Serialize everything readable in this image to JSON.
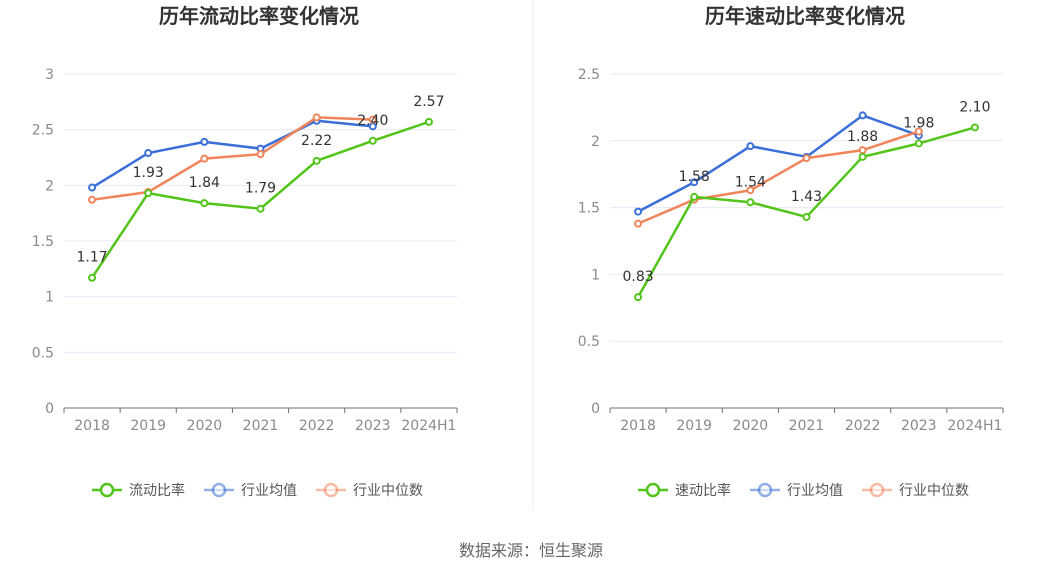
{
  "source": "数据来源：恒生聚源",
  "chart_data": [
    {
      "type": "line",
      "title": "历年流动比率变化情况",
      "categories": [
        "2018",
        "2019",
        "2020",
        "2021",
        "2022",
        "2023",
        "2024H1"
      ],
      "ylim": [
        0,
        3
      ],
      "yticks": [
        "0",
        "0.5",
        "1",
        "1.5",
        "2",
        "2.5",
        "3"
      ],
      "ytick_values": [
        0,
        0.5,
        1,
        1.5,
        2,
        2.5,
        3
      ],
      "grid": true,
      "legend_position": "bottom-center",
      "series": [
        {
          "name": "流动比率",
          "color": "#52c41a",
          "values": [
            1.17,
            1.93,
            1.84,
            1.79,
            2.22,
            2.4,
            2.57
          ],
          "labels": [
            "1.17",
            "1.93",
            "1.84",
            "1.79",
            "2.22",
            "2.40",
            "2.57"
          ]
        },
        {
          "name": "行业均值",
          "color": "#3a6fd8",
          "values": [
            1.98,
            2.29,
            2.39,
            2.33,
            2.58,
            2.53,
            null
          ]
        },
        {
          "name": "行业中位数",
          "color": "#f0845a",
          "values": [
            1.87,
            1.94,
            2.24,
            2.28,
            2.61,
            2.59,
            null
          ]
        }
      ]
    },
    {
      "type": "line",
      "title": "历年速动比率变化情况",
      "categories": [
        "2018",
        "2019",
        "2020",
        "2021",
        "2022",
        "2023",
        "2024H1"
      ],
      "ylim": [
        0,
        2.5
      ],
      "yticks": [
        "0",
        "0.5",
        "1",
        "1.5",
        "2",
        "2.5"
      ],
      "ytick_values": [
        0,
        0.5,
        1,
        1.5,
        2,
        2.5
      ],
      "grid": true,
      "legend_position": "bottom-center",
      "series": [
        {
          "name": "速动比率",
          "color": "#52c41a",
          "values": [
            0.83,
            1.58,
            1.54,
            1.43,
            1.88,
            1.98,
            2.1
          ],
          "labels": [
            "0.83",
            "1.58",
            "1.54",
            "1.43",
            "1.88",
            "1.98",
            "2.10"
          ]
        },
        {
          "name": "行业均值",
          "color": "#3a6fd8",
          "values": [
            1.47,
            1.69,
            1.96,
            1.88,
            2.19,
            2.04,
            null
          ]
        },
        {
          "name": "行业中位数",
          "color": "#f0845a",
          "values": [
            1.38,
            1.56,
            1.63,
            1.87,
            1.93,
            2.07,
            null
          ]
        }
      ]
    }
  ]
}
